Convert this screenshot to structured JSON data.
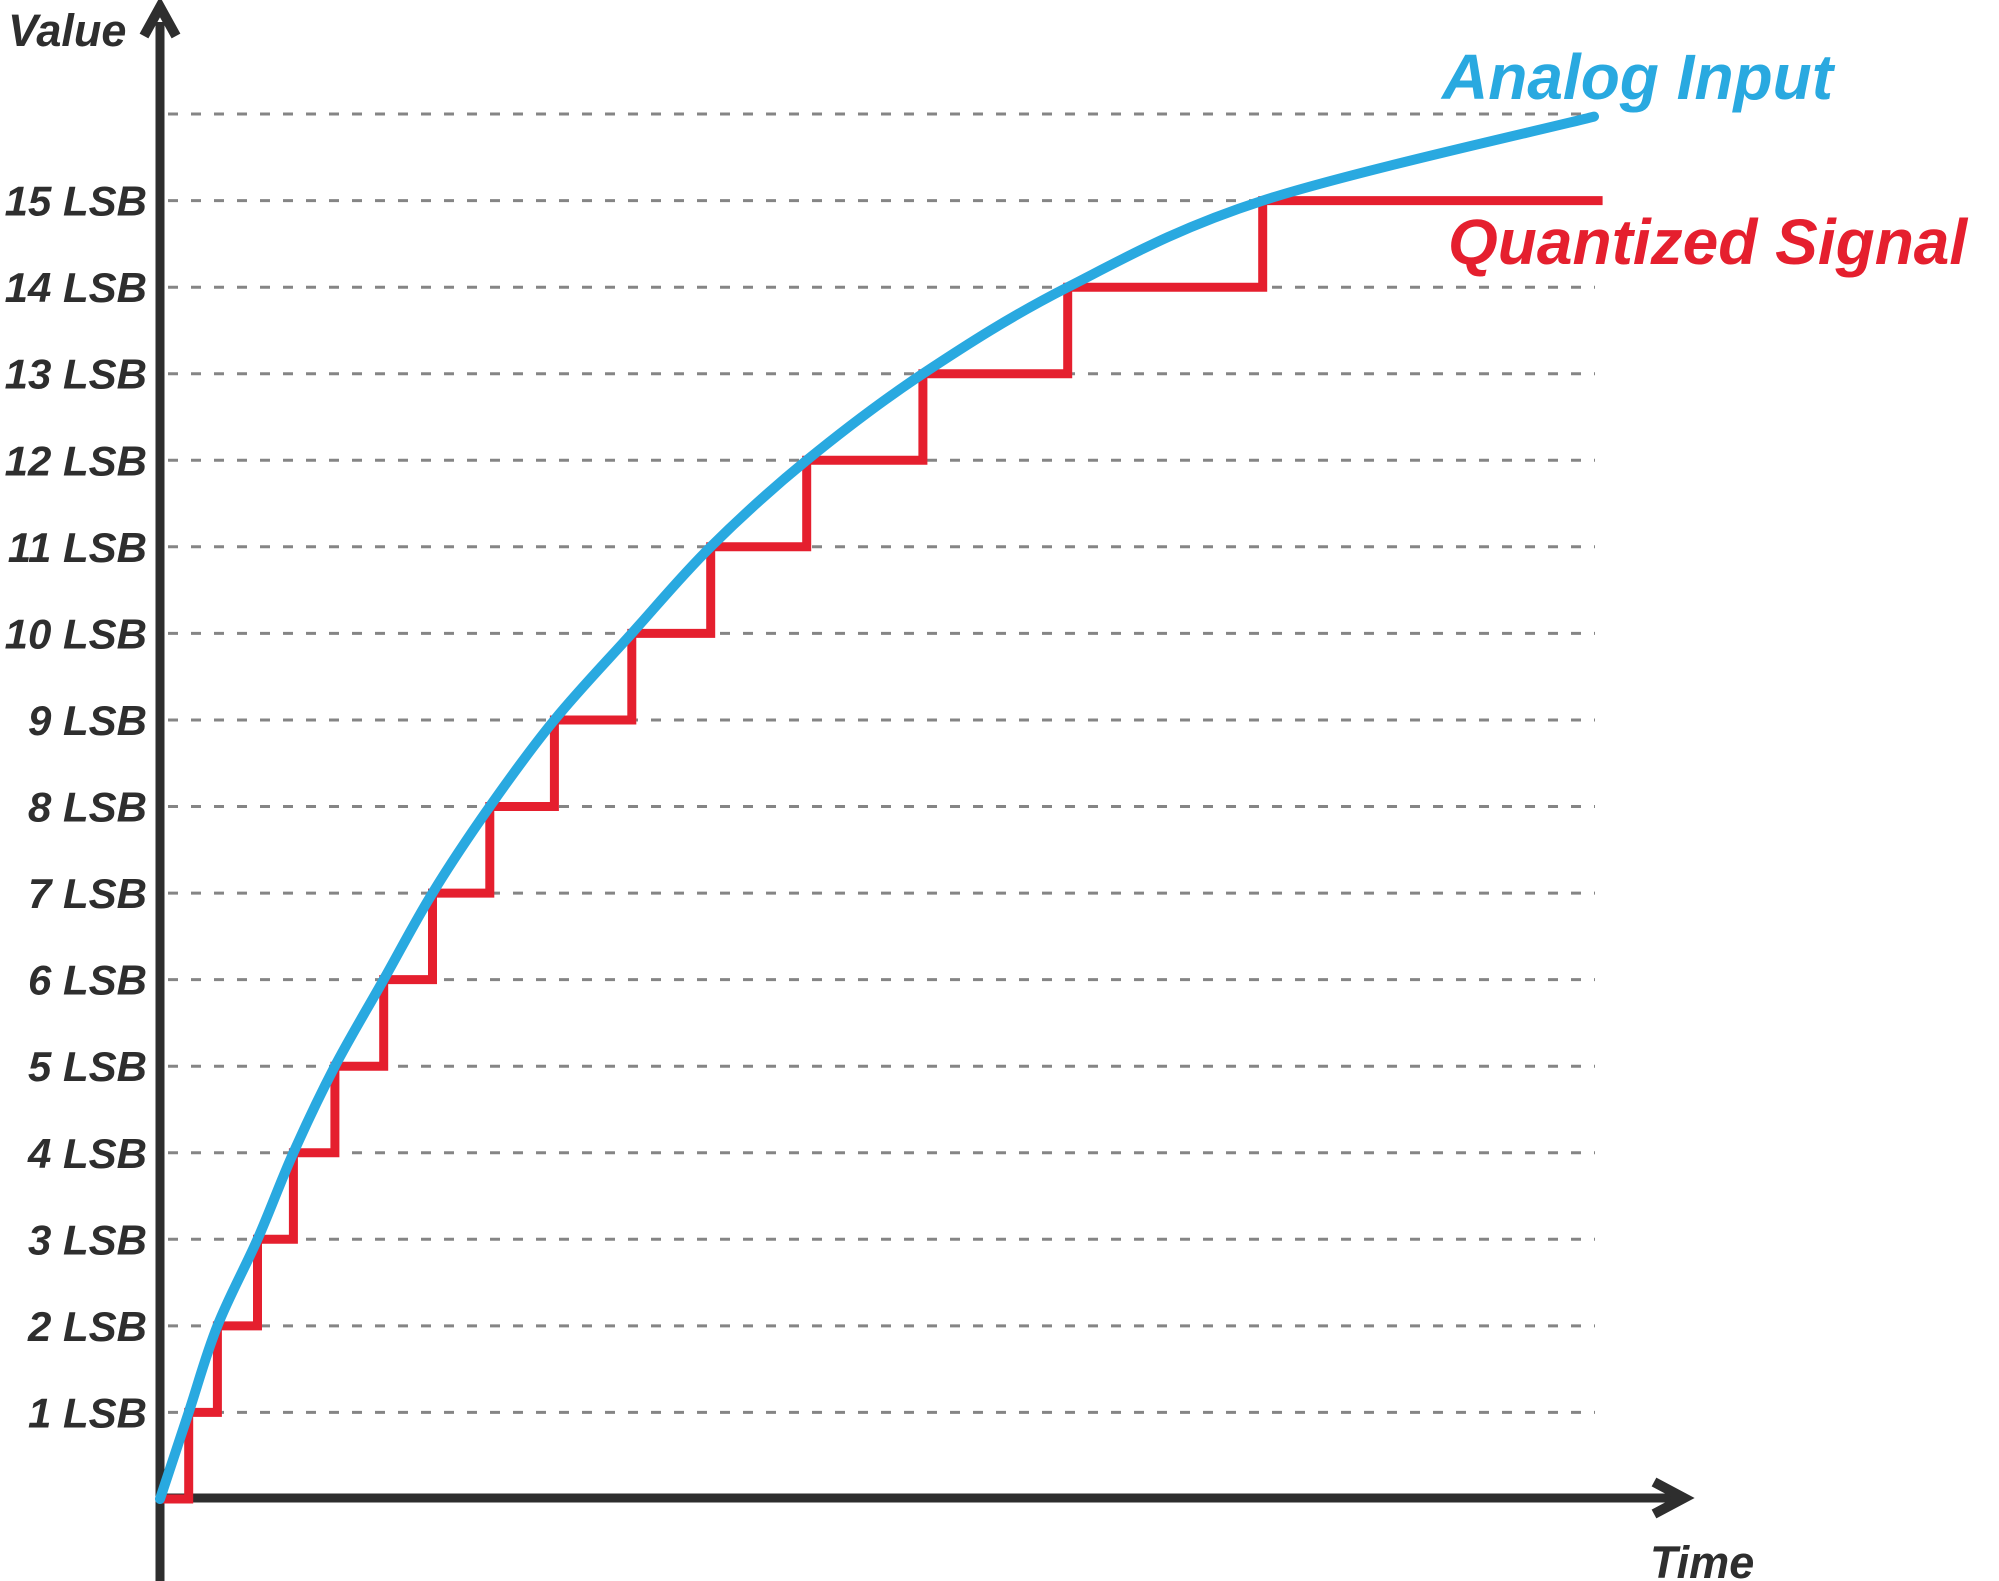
{
  "chart_data": {
    "type": "line",
    "title": "",
    "ylabel": "Value",
    "xlabel": "Time",
    "y_unit": "LSB",
    "ylim": [
      0,
      16.5
    ],
    "xlim": [
      0,
      1.06
    ],
    "grid": "horizontal-dashed",
    "grid_color": "#858585",
    "grid_levels": [
      1,
      2,
      3,
      4,
      5,
      6,
      7,
      8,
      9,
      10,
      11,
      12,
      13,
      14,
      15,
      16
    ],
    "axis_color": "#2e2e2e",
    "legend_position": "inline-near-lines",
    "y_ticks": [
      {
        "value": 1,
        "label": "1 LSB"
      },
      {
        "value": 2,
        "label": "2 LSB"
      },
      {
        "value": 3,
        "label": "3 LSB"
      },
      {
        "value": 4,
        "label": "4 LSB"
      },
      {
        "value": 5,
        "label": "5 LSB"
      },
      {
        "value": 6,
        "label": "6 LSB"
      },
      {
        "value": 7,
        "label": "7 LSB"
      },
      {
        "value": 8,
        "label": "8 LSB"
      },
      {
        "value": 9,
        "label": "9 LSB"
      },
      {
        "value": 10,
        "label": "10 LSB"
      },
      {
        "value": 11,
        "label": "11 LSB"
      },
      {
        "value": 12,
        "label": "12 LSB"
      },
      {
        "value": 13,
        "label": "13 LSB"
      },
      {
        "value": 14,
        "label": "14 LSB"
      },
      {
        "value": 15,
        "label": "15 LSB"
      }
    ],
    "series": [
      {
        "name": "Analog Input",
        "type": "smooth-line",
        "color": "#29a9e0",
        "points": [
          [
            0,
            0
          ],
          [
            0.02,
            1
          ],
          [
            0.04,
            2
          ],
          [
            0.068,
            3
          ],
          [
            0.093,
            4
          ],
          [
            0.122,
            5
          ],
          [
            0.156,
            6
          ],
          [
            0.19,
            7
          ],
          [
            0.23,
            8
          ],
          [
            0.275,
            9
          ],
          [
            0.329,
            10
          ],
          [
            0.384,
            11
          ],
          [
            0.451,
            12
          ],
          [
            0.532,
            13
          ],
          [
            0.633,
            14
          ],
          [
            0.769,
            15
          ],
          [
            1.0,
            15.97
          ]
        ]
      },
      {
        "name": "Quantized Signal",
        "type": "step",
        "color": "#e51f2e",
        "description": "Steps up 1 LSB each time the analog input crosses a level",
        "points": [
          [
            0,
            0
          ],
          [
            0.02,
            1
          ],
          [
            0.04,
            2
          ],
          [
            0.068,
            3
          ],
          [
            0.093,
            4
          ],
          [
            0.122,
            5
          ],
          [
            0.156,
            6
          ],
          [
            0.19,
            7
          ],
          [
            0.23,
            8
          ],
          [
            0.275,
            9
          ],
          [
            0.329,
            10
          ],
          [
            0.384,
            11
          ],
          [
            0.451,
            12
          ],
          [
            0.532,
            13
          ],
          [
            0.633,
            14
          ],
          [
            0.769,
            15
          ],
          [
            1.006,
            15
          ]
        ]
      }
    ]
  }
}
